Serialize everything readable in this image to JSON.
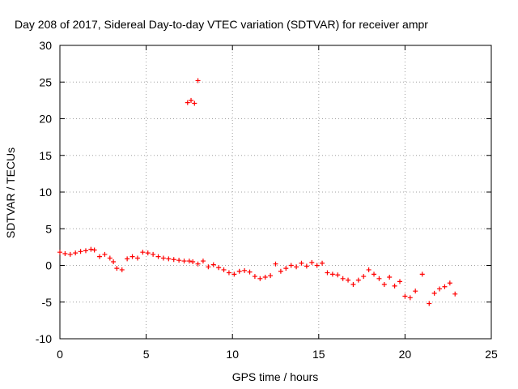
{
  "chart_data": {
    "type": "scatter",
    "title": "Day 208 of 2017, Sidereal Day-to-day VTEC variation (SDTVAR) for receiver ampr",
    "xlabel": "GPS time / hours",
    "ylabel": "SDTVAR / TECUs",
    "xlim": [
      0,
      25
    ],
    "ylim": [
      -10,
      30
    ],
    "xticks": [
      0,
      5,
      10,
      15,
      20,
      25
    ],
    "yticks": [
      -10,
      -5,
      0,
      5,
      10,
      15,
      20,
      25,
      30
    ],
    "xtick_labels": [
      "0",
      "5",
      "10",
      "15",
      "20",
      "25"
    ],
    "ytick_labels": [
      "-10",
      "-5",
      "0",
      "5",
      "10",
      "15",
      "20",
      "25",
      "30"
    ],
    "grid": true,
    "marker": "+",
    "color": "#ff0000",
    "series": [
      {
        "name": "SDTVAR",
        "x": [
          0.0,
          0.3,
          0.6,
          0.9,
          1.2,
          1.5,
          1.8,
          2.0,
          2.3,
          2.6,
          2.9,
          3.1,
          3.3,
          3.6,
          3.9,
          4.2,
          4.5,
          4.8,
          5.1,
          5.4,
          5.7,
          6.0,
          6.3,
          6.6,
          6.9,
          7.2,
          7.5,
          7.7,
          8.0,
          8.3,
          8.6,
          8.9,
          9.2,
          9.5,
          9.8,
          10.1,
          10.4,
          10.7,
          11.0,
          11.3,
          11.6,
          11.9,
          12.2,
          12.5,
          12.8,
          13.1,
          13.4,
          13.7,
          14.0,
          14.3,
          14.6,
          14.9,
          15.2,
          15.5,
          15.8,
          16.1,
          16.4,
          16.7,
          17.0,
          17.3,
          17.6,
          17.9,
          18.2,
          18.5,
          18.8,
          19.1,
          19.4,
          19.7,
          20.0,
          20.3,
          20.6,
          21.0,
          21.4,
          21.7,
          22.0,
          22.3,
          22.6,
          22.9,
          7.4,
          7.6,
          7.8,
          8.0
        ],
        "y": [
          1.8,
          1.6,
          1.5,
          1.7,
          1.9,
          2.0,
          2.2,
          2.1,
          1.2,
          1.5,
          1.0,
          0.5,
          -0.4,
          -0.6,
          0.9,
          1.2,
          1.0,
          1.8,
          1.7,
          1.5,
          1.2,
          1.0,
          0.9,
          0.8,
          0.7,
          0.6,
          0.6,
          0.5,
          0.2,
          0.6,
          -0.2,
          0.1,
          -0.3,
          -0.6,
          -1.0,
          -1.2,
          -0.8,
          -0.7,
          -0.9,
          -1.5,
          -1.8,
          -1.6,
          -1.4,
          0.2,
          -0.8,
          -0.4,
          0.0,
          -0.2,
          0.3,
          -0.1,
          0.4,
          0.0,
          0.3,
          -1.0,
          -1.2,
          -1.3,
          -1.8,
          -2.0,
          -2.6,
          -2.0,
          -1.5,
          -0.6,
          -1.2,
          -1.8,
          -2.6,
          -1.6,
          -2.8,
          -2.2,
          -4.2,
          -4.4,
          -3.5,
          -1.2,
          -5.2,
          -3.8,
          -3.2,
          -2.9,
          -2.4,
          -3.9,
          22.2,
          22.5,
          22.1,
          25.2
        ]
      }
    ]
  }
}
